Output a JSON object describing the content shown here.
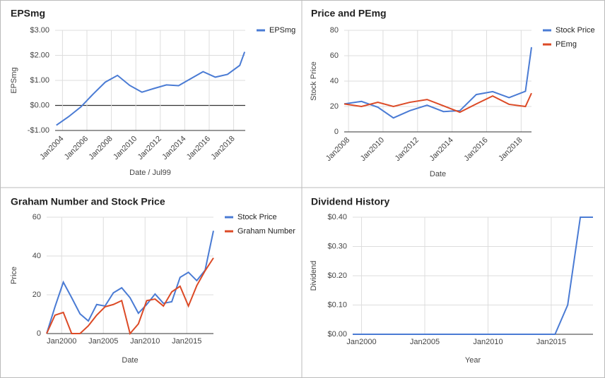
{
  "chart_data": [
    {
      "type": "line",
      "title": "EPSmg",
      "x_label": "Date / Jul99",
      "y_label": "EPSmg",
      "x": [
        2003.5,
        2004.5,
        2005.5,
        2006.5,
        2007.5,
        2008.5,
        2009.5,
        2010.5,
        2011.5,
        2012.5,
        2013.5,
        2014.5,
        2015.5,
        2016.5,
        2017.5,
        2018.5,
        2018.9
      ],
      "series": [
        {
          "name": "EPSmg",
          "color": "#4a7bd4",
          "values": [
            -0.79,
            -0.45,
            -0.06,
            0.45,
            0.93,
            1.2,
            0.8,
            0.53,
            0.68,
            0.82,
            0.79,
            1.07,
            1.35,
            1.13,
            1.24,
            1.6,
            2.14
          ]
        }
      ],
      "xlim": [
        2003.4,
        2018.95
      ],
      "xticks": [
        {
          "value": 2004,
          "label": "Jan2004"
        },
        {
          "value": 2006,
          "label": "Jan2006"
        },
        {
          "value": 2008,
          "label": "Jan2008"
        },
        {
          "value": 2010,
          "label": "Jan2010"
        },
        {
          "value": 2012,
          "label": "Jan2012"
        },
        {
          "value": 2014,
          "label": "Jan2014"
        },
        {
          "value": 2016,
          "label": "Jan2016"
        },
        {
          "value": 2018,
          "label": "Jan2018"
        }
      ],
      "ylim": [
        -1,
        3
      ],
      "yticks": [
        {
          "value": -1,
          "label": "-$1.00"
        },
        {
          "value": 0,
          "label": "$0.00"
        },
        {
          "value": 1,
          "label": "$1.00"
        },
        {
          "value": 2,
          "label": "$2.00"
        },
        {
          "value": 3,
          "label": "$3.00"
        }
      ],
      "grid": true,
      "legend": "top-right"
    },
    {
      "type": "line",
      "title": "Price and PEmg",
      "x_label": "Date",
      "y_label": "Stock Price",
      "x": [
        2007.75,
        2008.75,
        2009.7,
        2010.6,
        2011.55,
        2012.55,
        2013.5,
        2014.45,
        2015.4,
        2016.35,
        2017.3,
        2018.25,
        2018.6
      ],
      "series": [
        {
          "name": "Stock Price",
          "color": "#4a7bd4",
          "values": [
            22,
            24,
            19.4,
            11,
            16.7,
            21,
            16,
            16.7,
            29.4,
            31.7,
            27,
            32,
            66.7
          ]
        },
        {
          "name": "PEmg",
          "color": "#dc4a26",
          "values": [
            22,
            20,
            23.3,
            20,
            23.3,
            25.5,
            20.5,
            15.5,
            22,
            28.3,
            21.7,
            20,
            30.5
          ]
        }
      ],
      "xlim": [
        2007.75,
        2018.6
      ],
      "xticks": [
        {
          "value": 2008,
          "label": "Jan2008"
        },
        {
          "value": 2010,
          "label": "Jan2010"
        },
        {
          "value": 2012,
          "label": "Jan2012"
        },
        {
          "value": 2014,
          "label": "Jan2014"
        },
        {
          "value": 2016,
          "label": "Jan2016"
        },
        {
          "value": 2018,
          "label": "Jan2018"
        }
      ],
      "ylim": [
        0,
        80
      ],
      "yticks": [
        0,
        20,
        40,
        60,
        80
      ],
      "grid": true,
      "legend": "top-right"
    },
    {
      "type": "line",
      "title": "Graham Number and Stock Price",
      "x_label": "Date",
      "y_label": "Price",
      "x": [
        1998.2,
        1999.2,
        2000.2,
        2001.2,
        2002.2,
        2003.2,
        2004.2,
        2005.2,
        2006.2,
        2007.2,
        2008.2,
        2009.2,
        2010.2,
        2011.2,
        2012.2,
        2013.2,
        2014.2,
        2015.2,
        2016.2,
        2017.2,
        2018.2
      ],
      "series": [
        {
          "name": "Stock Price",
          "color": "#4a7bd4",
          "values": [
            0,
            13.8,
            26.5,
            18.5,
            10.2,
            6.5,
            15,
            14.2,
            21,
            23.6,
            18.5,
            10.5,
            15,
            20.4,
            15.6,
            16.4,
            29,
            31.6,
            27.3,
            32.7,
            53
          ]
        },
        {
          "name": "Graham Number",
          "color": "#dc4a26",
          "values": [
            0,
            9.5,
            10.9,
            0,
            0,
            4,
            9.5,
            13.8,
            15,
            17,
            0,
            5,
            17,
            17.8,
            14.2,
            21.5,
            24.4,
            14.2,
            24.7,
            32.4,
            39
          ]
        }
      ],
      "xlim": [
        1998.2,
        2018.2
      ],
      "xticks": [
        {
          "value": 2000,
          "label": "Jan2000"
        },
        {
          "value": 2005,
          "label": "Jan2005"
        },
        {
          "value": 2010,
          "label": "Jan2010"
        },
        {
          "value": 2015,
          "label": "Jan2015"
        }
      ],
      "ylim": [
        0,
        60
      ],
      "yticks": [
        0,
        20,
        40,
        60
      ],
      "grid": true,
      "legend": "top-right"
    },
    {
      "type": "line",
      "title": "Dividend History",
      "x_label": "Year",
      "y_label": "Dividend",
      "x": [
        1999.3,
        2000.3,
        2001.3,
        2002.3,
        2003.3,
        2004.3,
        2005.3,
        2006.3,
        2007.3,
        2008.3,
        2009.3,
        2010.3,
        2011.3,
        2012.3,
        2013.3,
        2014.3,
        2015.3,
        2016.3,
        2017.3,
        2018.3
      ],
      "values": [
        0,
        0,
        0,
        0,
        0,
        0,
        0,
        0,
        0,
        0,
        0,
        0,
        0,
        0,
        0,
        0,
        0,
        0.1,
        0.4,
        0.4
      ],
      "color": "#4a7bd4",
      "xlim": [
        1999.3,
        2018.3
      ],
      "xticks": [
        {
          "value": 2000,
          "label": "Jan2000"
        },
        {
          "value": 2005,
          "label": "Jan2005"
        },
        {
          "value": 2010,
          "label": "Jan2010"
        },
        {
          "value": 2015,
          "label": "Jan2015"
        }
      ],
      "ylim": [
        0,
        0.4
      ],
      "yticks": [
        {
          "value": 0,
          "label": "$0.00"
        },
        {
          "value": 0.1,
          "label": "$0.10"
        },
        {
          "value": 0.2,
          "label": "$0.20"
        },
        {
          "value": 0.3,
          "label": "$0.30"
        },
        {
          "value": 0.4,
          "label": "$0.40"
        }
      ],
      "grid": true
    }
  ]
}
